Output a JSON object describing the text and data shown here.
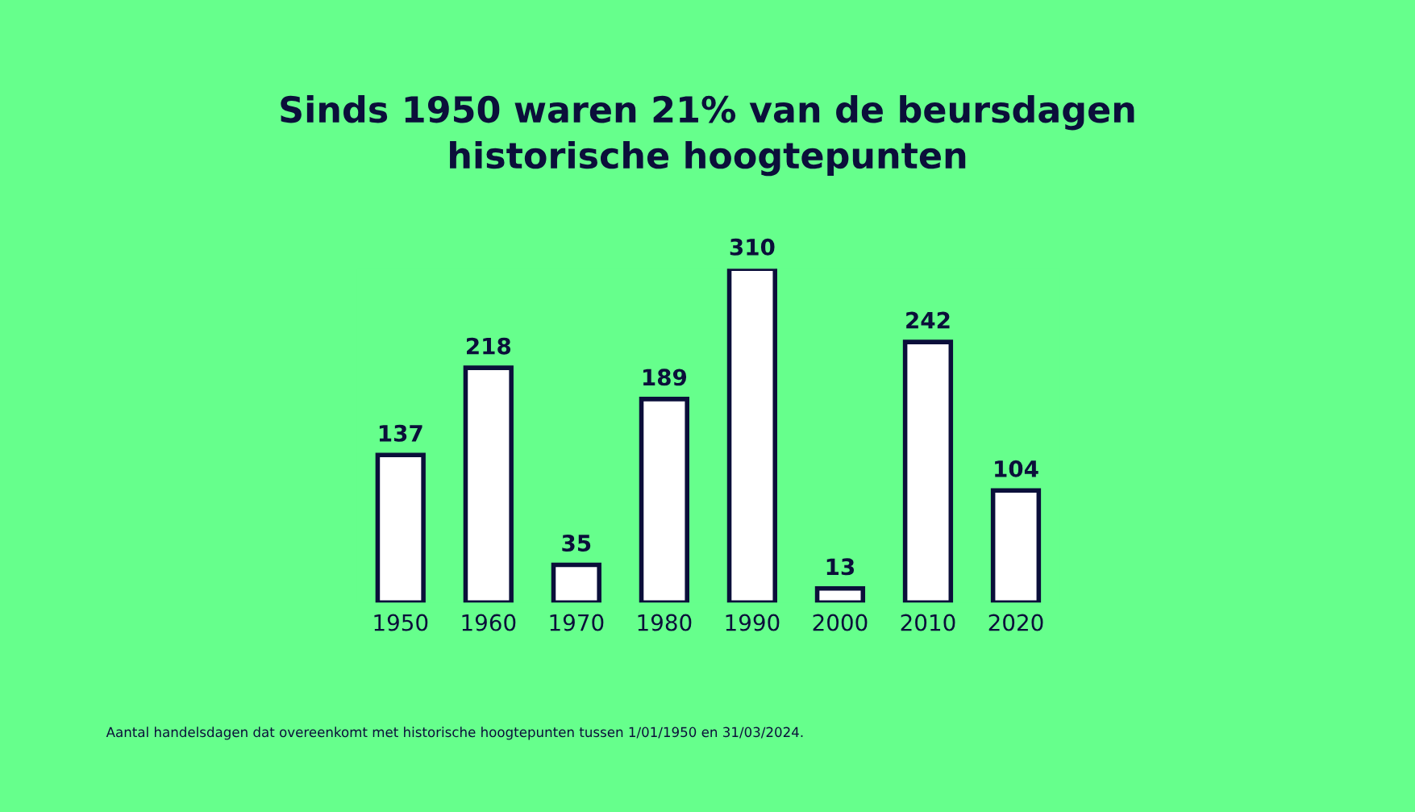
{
  "chart_data": {
    "type": "bar",
    "title": "Sinds 1950 waren 21% van de beursdagen\nhistorische hoogtepunten",
    "categories": [
      "1950",
      "1960",
      "1970",
      "1980",
      "1990",
      "2000",
      "2010",
      "2020"
    ],
    "values": [
      137,
      218,
      35,
      189,
      310,
      13,
      242,
      104
    ],
    "color": "#ffffff",
    "data_labels": true,
    "grid": false,
    "annotations": [
      "Aantal handelsdagen dat overeenkomt met historische hoogtepunten tussen 1/01/1950 en 31/03/2024."
    ]
  }
}
